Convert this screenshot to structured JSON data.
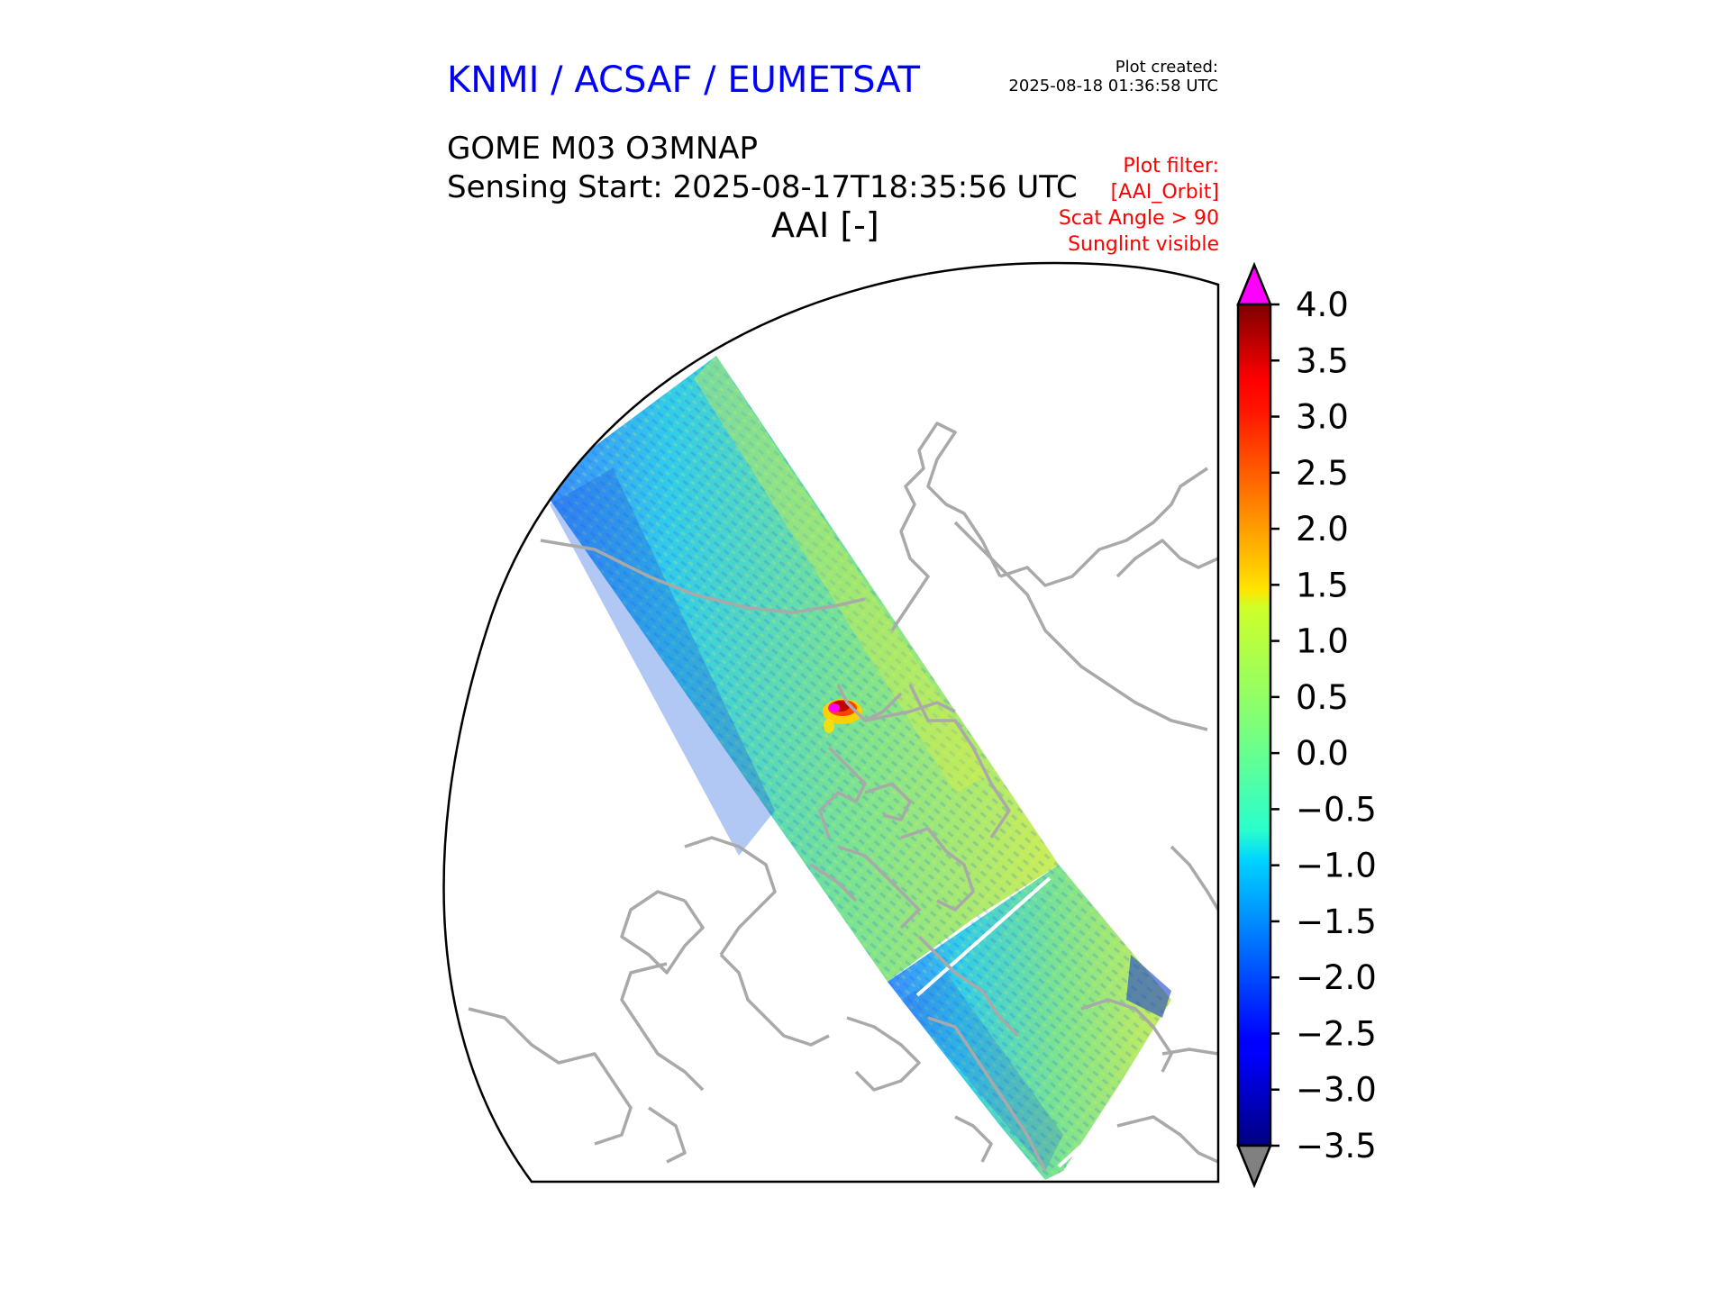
{
  "header": {
    "org_title": "KNMI / ACSAF / EUMETSAT",
    "org_color": "#0000ff",
    "plot_created_label": "Plot created:",
    "plot_created_time": "2025-08-18 01:36:58 UTC",
    "product": "GOME M03 O3MNAP",
    "sensing_start": "Sensing Start: 2025-08-17T18:35:56 UTC",
    "variable_title": "AAI [-]"
  },
  "filter": {
    "color": "#ff0000",
    "lines": [
      "Plot filter:",
      "[AAI_Orbit]",
      "Scat Angle > 90",
      "Sunglint visible"
    ]
  },
  "map": {
    "coastline_color": "#a9a9a9",
    "hotspot_max_color": "#ff00ff"
  },
  "colorbar": {
    "min": -3.5,
    "max": 4.0,
    "ticks": [
      "4.0",
      "3.5",
      "3.0",
      "2.5",
      "2.0",
      "1.5",
      "1.0",
      "0.5",
      "0.0",
      "−0.5",
      "−1.0",
      "−1.5",
      "−2.0",
      "−2.5",
      "−3.0",
      "−3.5"
    ],
    "tick_values": [
      4.0,
      3.5,
      3.0,
      2.5,
      2.0,
      1.5,
      1.0,
      0.5,
      0.0,
      -0.5,
      -1.0,
      -1.5,
      -2.0,
      -2.5,
      -3.0,
      -3.5
    ],
    "over_color": "#ff00ff",
    "under_color": "#808080",
    "colormap": "jet"
  }
}
